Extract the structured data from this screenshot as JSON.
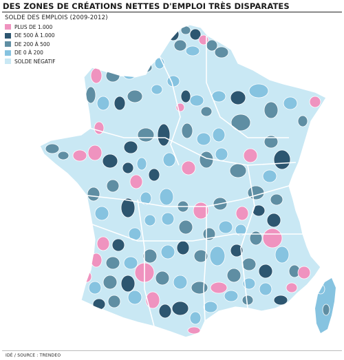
{
  "title": "DES ZONES DE CRÉATIONS NETTES D'EMPLOI TRÈS DISPARATES",
  "legend": {
    "title": "SOLDE DES EMPLOIS (2009-2012)",
    "items": [
      {
        "label": "PLUS DE 1.000",
        "color": "#ef93bf"
      },
      {
        "label": "DE 500 À 1.000",
        "color": "#2d5670"
      },
      {
        "label": "DE 200 À 500",
        "color": "#5f8ea3"
      },
      {
        "label": "DE 0 À 200",
        "color": "#86c3e0"
      },
      {
        "label": "SOLDE NÉGATIF",
        "color": "#c9e8f4"
      }
    ]
  },
  "source": "IDÉ / SOURCE : TRENDEO"
}
